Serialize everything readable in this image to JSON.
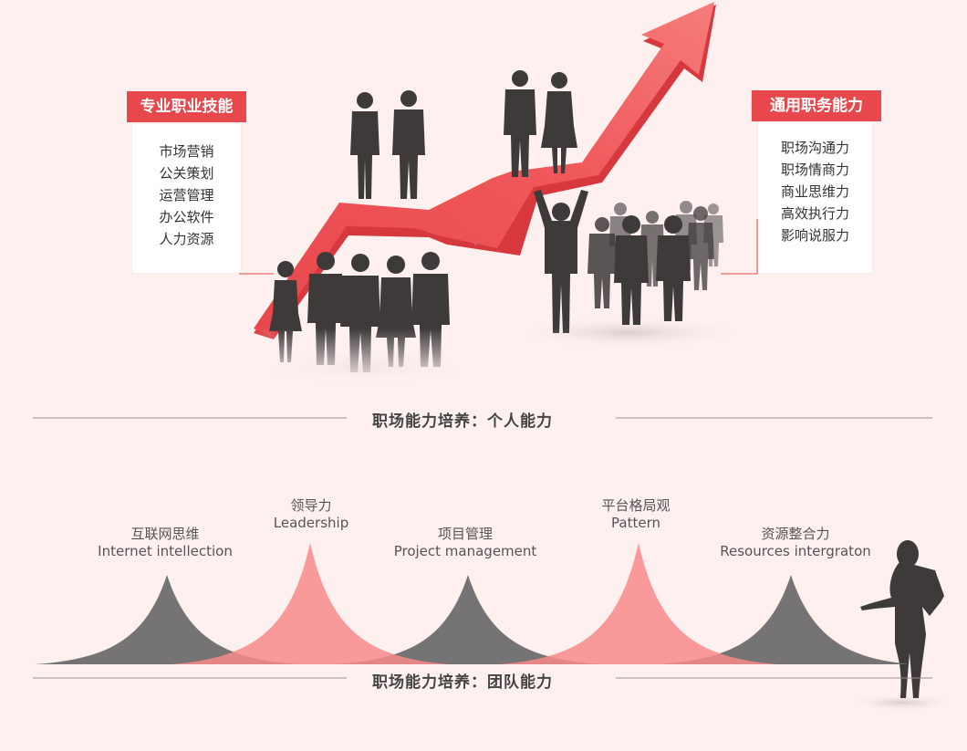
{
  "colors": {
    "background": "#fdf0ef",
    "accent": "#e8474c",
    "arrow_light": "#f26d6f",
    "arrow_dark": "#d9363c",
    "silhouette": "#3e3a3a",
    "peak_gray": "#6e6c6c",
    "peak_pink": "#f98a8a"
  },
  "left_card": {
    "title": "专业职业技能",
    "items": [
      "市场营销",
      "公关策划",
      "运营管理",
      "办公软件",
      "人力资源"
    ]
  },
  "right_card": {
    "title": "通用职务能力",
    "items": [
      "职场沟通力",
      "职场情商力",
      "商业思维力",
      "高效执行力",
      "影响说服力"
    ]
  },
  "section1_title": "职场能力培养：个人能力",
  "section2_title": "职场能力培养：团队能力",
  "peaks": [
    {
      "zh": "互联网思维",
      "en": "Internet intellection",
      "color": "gray"
    },
    {
      "zh": "领导力",
      "en": "Leadership",
      "color": "pink"
    },
    {
      "zh": "项目管理",
      "en": "Project  management",
      "color": "gray"
    },
    {
      "zh": "平台格局观",
      "en": "Pattern",
      "color": "pink"
    },
    {
      "zh": "资源整合力",
      "en": "Resources  intergraton",
      "color": "gray"
    }
  ]
}
